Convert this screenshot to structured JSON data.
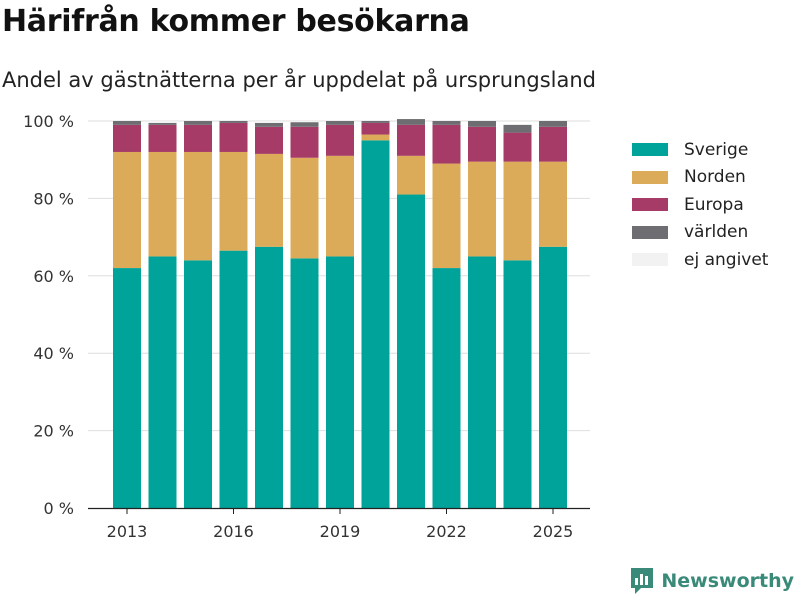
{
  "title": "Härifrån kommer besökarna",
  "subtitle": "Andel av gästnätterna per år uppdelat på ursprungsland",
  "brand": "Newsworthy",
  "colors": {
    "Sverige": "#00a39a",
    "Norden": "#dbab5a",
    "Europa": "#a53b66",
    "världen": "#6e6e72",
    "ej angivet": "#f2f2f2"
  },
  "chart_data": {
    "type": "bar",
    "stacked": true,
    "categories": [
      "2013",
      "2014",
      "2015",
      "2016",
      "2017",
      "2018",
      "2019",
      "2020",
      "2021",
      "2022",
      "2023",
      "2024",
      "2025"
    ],
    "x_tick_labels": [
      "2013",
      "2016",
      "2019",
      "2022",
      "2025"
    ],
    "y_tick_labels": [
      "0 %",
      "20 %",
      "40 %",
      "60 %",
      "80 %",
      "100 %"
    ],
    "ylim": [
      0,
      100
    ],
    "grid": true,
    "legend_position": "right",
    "series": [
      {
        "name": "Sverige",
        "values": [
          62,
          65,
          64,
          66.5,
          67.5,
          64.5,
          65,
          95,
          81,
          62,
          65,
          64,
          67.5
        ]
      },
      {
        "name": "Norden",
        "values": [
          30,
          27,
          28,
          25.5,
          24,
          26,
          26,
          1.5,
          10,
          27,
          24.5,
          25.5,
          22
        ]
      },
      {
        "name": "Europa",
        "values": [
          7,
          7,
          7,
          7.5,
          7,
          8,
          8,
          3,
          8,
          10,
          9,
          7.5,
          9
        ]
      },
      {
        "name": "världen",
        "values": [
          1,
          0.5,
          1,
          0.5,
          1,
          1.2,
          1,
          0.5,
          1.5,
          1,
          1.5,
          2,
          1.5
        ]
      },
      {
        "name": "ej angivet",
        "values": [
          0,
          0.5,
          0,
          0,
          0.5,
          0.3,
          0,
          0,
          0,
          0,
          0,
          0,
          0
        ]
      }
    ]
  }
}
